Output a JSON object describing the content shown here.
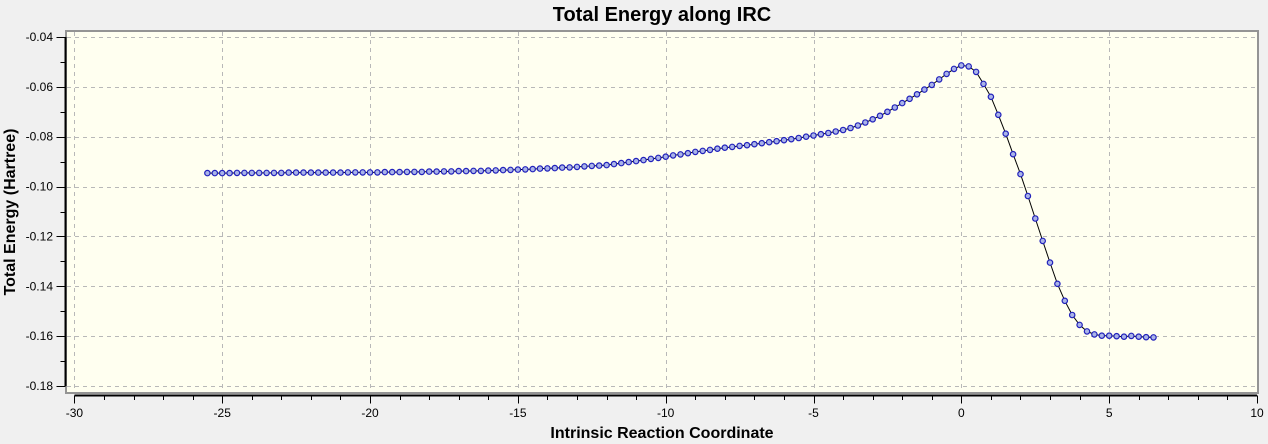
{
  "window": {
    "background": "#f0f0f0"
  },
  "style": {
    "plot_bg": "#fffff0",
    "outer_bg": "#f0f0f0",
    "border_color": "#949494",
    "grid_color": "#b8b8b8",
    "axis_color": "#000000",
    "line_color": "#000000",
    "marker_fill": "#aab4e8",
    "marker_stroke": "#2222bb",
    "text_color": "#000000"
  },
  "chart_data": {
    "type": "line",
    "title": "Total Energy along IRC",
    "xlabel": "Intrinsic Reaction Coordinate",
    "ylabel": "Total Energy (Hartree)",
    "x_range": [
      -30.25,
      10.0
    ],
    "y_range": [
      -0.1824,
      -0.038
    ],
    "x_major_ticks": [
      -30,
      -25,
      -20,
      -15,
      -10,
      -5,
      0,
      5,
      10
    ],
    "x_tick_labels": [
      "-30",
      "-25",
      "-20",
      "-15",
      "-10",
      "-5",
      "0",
      "5",
      "10"
    ],
    "x_minor_step": 1,
    "y_major_ticks": [
      -0.04,
      -0.06,
      -0.08,
      -0.1,
      -0.12,
      -0.14,
      -0.16,
      -0.18
    ],
    "y_tick_labels": [
      "-0.04",
      "-0.06",
      "-0.08",
      "-0.10",
      "-0.12",
      "-0.14",
      "-0.16",
      "-0.18"
    ],
    "y_minor_step": 0.01,
    "grid": true,
    "grid_style": "dashed",
    "legend": false,
    "marker": "circle",
    "series": [
      {
        "name": "Total Energy",
        "x": [
          -25.5,
          -25.25,
          -25,
          -24.75,
          -24.5,
          -24.25,
          -24,
          -23.75,
          -23.5,
          -23.25,
          -23,
          -22.75,
          -22.5,
          -22.25,
          -22,
          -21.75,
          -21.5,
          -21.25,
          -21,
          -20.75,
          -20.5,
          -20.25,
          -20,
          -19.75,
          -19.5,
          -19.25,
          -19,
          -18.75,
          -18.5,
          -18.25,
          -18,
          -17.75,
          -17.5,
          -17.25,
          -17,
          -16.75,
          -16.5,
          -16.25,
          -16,
          -15.75,
          -15.5,
          -15.25,
          -15,
          -14.75,
          -14.5,
          -14.25,
          -14,
          -13.75,
          -13.5,
          -13.25,
          -13,
          -12.75,
          -12.5,
          -12.25,
          -12,
          -11.75,
          -11.5,
          -11.25,
          -11,
          -10.75,
          -10.5,
          -10.25,
          -10,
          -9.75,
          -9.5,
          -9.25,
          -9,
          -8.75,
          -8.5,
          -8.25,
          -8,
          -7.75,
          -7.5,
          -7.25,
          -7,
          -6.75,
          -6.5,
          -6.25,
          -6,
          -5.75,
          -5.5,
          -5.25,
          -5,
          -4.75,
          -4.5,
          -4.25,
          -4,
          -3.75,
          -3.5,
          -3.25,
          -3,
          -2.75,
          -2.5,
          -2.25,
          -2,
          -1.75,
          -1.5,
          -1.25,
          -1,
          -0.75,
          -0.5,
          -0.25,
          0,
          0.25,
          0.5,
          0.75,
          1,
          1.25,
          1.5,
          1.75,
          2,
          2.25,
          2.5,
          2.75,
          3,
          3.25,
          3.5,
          3.75,
          4,
          4.25,
          4.5,
          4.75,
          5,
          5.25,
          5.5,
          5.75,
          6,
          6.25,
          6.5
        ],
        "y": [
          -0.0946,
          -0.0946,
          -0.0946,
          -0.0946,
          -0.0945,
          -0.0945,
          -0.0945,
          -0.0945,
          -0.0945,
          -0.0945,
          -0.0945,
          -0.0944,
          -0.0944,
          -0.0944,
          -0.0944,
          -0.0944,
          -0.0944,
          -0.0944,
          -0.0944,
          -0.0943,
          -0.0943,
          -0.0943,
          -0.0943,
          -0.0943,
          -0.0942,
          -0.0942,
          -0.0942,
          -0.0941,
          -0.0941,
          -0.0941,
          -0.094,
          -0.094,
          -0.0939,
          -0.0939,
          -0.0938,
          -0.0938,
          -0.0937,
          -0.0937,
          -0.0936,
          -0.0935,
          -0.0934,
          -0.0933,
          -0.0932,
          -0.0931,
          -0.093,
          -0.0928,
          -0.0927,
          -0.0926,
          -0.0924,
          -0.0923,
          -0.0921,
          -0.0919,
          -0.0917,
          -0.0916,
          -0.0914,
          -0.091,
          -0.0906,
          -0.0902,
          -0.0898,
          -0.0894,
          -0.0889,
          -0.0885,
          -0.088,
          -0.0875,
          -0.0871,
          -0.0866,
          -0.0861,
          -0.0857,
          -0.0853,
          -0.0848,
          -0.0844,
          -0.0841,
          -0.0837,
          -0.0834,
          -0.083,
          -0.0826,
          -0.0822,
          -0.0818,
          -0.0814,
          -0.081,
          -0.0805,
          -0.08,
          -0.0795,
          -0.079,
          -0.0785,
          -0.0779,
          -0.0773,
          -0.0765,
          -0.0755,
          -0.0743,
          -0.073,
          -0.0716,
          -0.07,
          -0.0683,
          -0.0665,
          -0.0648,
          -0.063,
          -0.0611,
          -0.0592,
          -0.057,
          -0.0548,
          -0.0528,
          -0.0514,
          -0.0518,
          -0.054,
          -0.0588,
          -0.064,
          -0.0712,
          -0.0788,
          -0.087,
          -0.095,
          -0.1038,
          -0.1128,
          -0.1218,
          -0.1305,
          -0.139,
          -0.1458,
          -0.1515,
          -0.1555,
          -0.1581,
          -0.1593,
          -0.1598,
          -0.1598,
          -0.16,
          -0.1602,
          -0.1599,
          -0.1602,
          -0.1604,
          -0.1605
        ]
      }
    ]
  }
}
